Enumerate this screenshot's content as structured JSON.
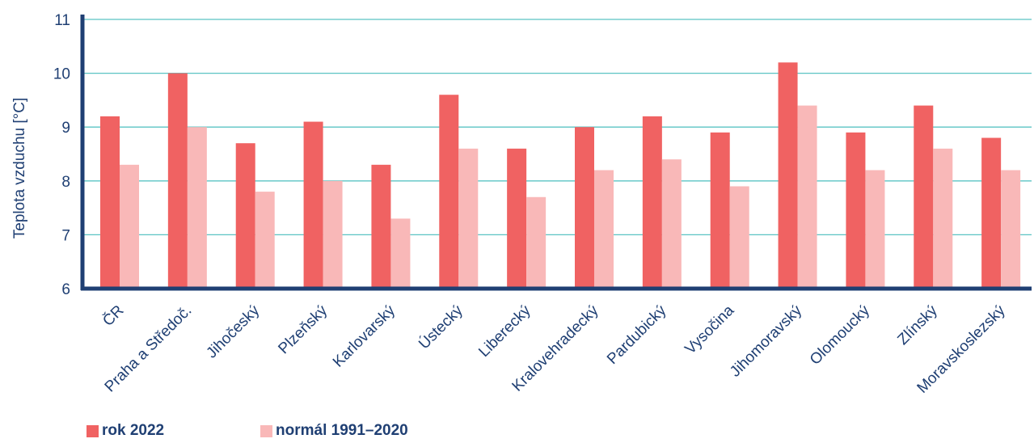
{
  "chart_data": {
    "type": "bar",
    "title": "",
    "xlabel": "",
    "ylabel": "Teplota vzduchu [°C]",
    "ylim": [
      6,
      11
    ],
    "yticks": [
      6,
      7,
      8,
      9,
      10,
      11
    ],
    "grid": true,
    "legend_position": "bottom-left",
    "categories": [
      "ČR",
      "Praha a Středoč.",
      "Jihočeský",
      "Plzeňský",
      "Karlovarský",
      "Ústecký",
      "Liberecký",
      "Kralovehradecký",
      "Pardubický",
      "Vysočina",
      "Jihomoravský",
      "Olomoucký",
      "Zlínský",
      "Moravskoslezský"
    ],
    "series": [
      {
        "name": "rok 2022",
        "color": "#f06262",
        "values": [
          9.2,
          10.0,
          8.7,
          9.1,
          8.3,
          9.6,
          8.6,
          9.0,
          9.2,
          8.9,
          10.2,
          8.9,
          9.4,
          8.8
        ]
      },
      {
        "name": "normál 1991–2020",
        "color": "#f9b8b8",
        "values": [
          8.3,
          9.0,
          7.8,
          8.0,
          7.3,
          8.6,
          7.7,
          8.2,
          8.4,
          7.9,
          9.4,
          8.2,
          8.6,
          8.2
        ]
      }
    ],
    "colors": {
      "axis": "#1f3f73",
      "grid": "#5bc4c4",
      "text": "#1f3f73"
    }
  }
}
